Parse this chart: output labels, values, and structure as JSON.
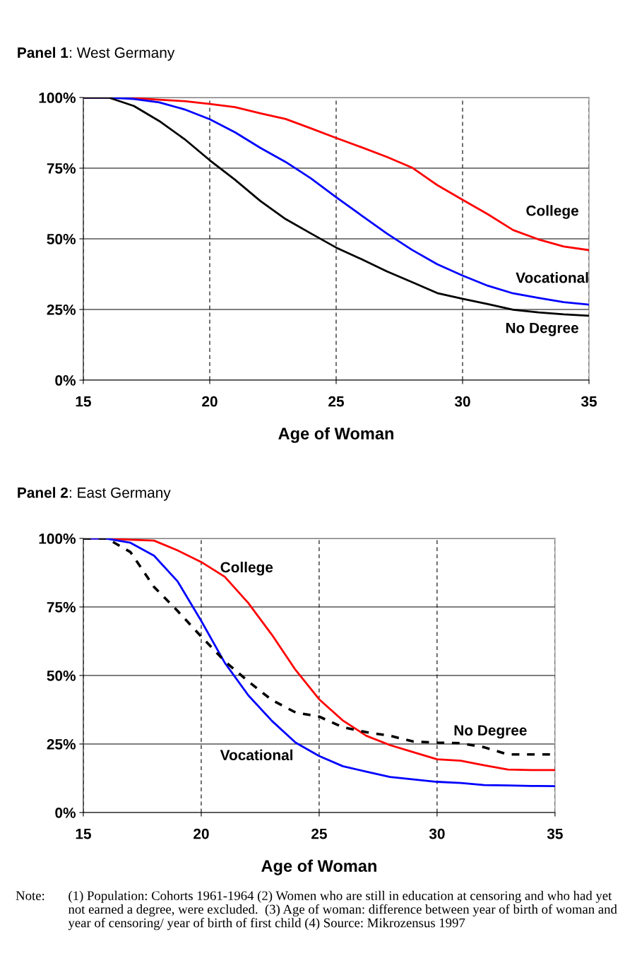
{
  "chart_data": [
    {
      "type": "line",
      "title": "Panel 1: West Germany",
      "xlabel": "Age of Woman",
      "x": [
        15,
        16,
        17,
        18,
        19,
        20,
        21,
        22,
        23,
        24,
        25,
        26,
        27,
        28,
        29,
        30,
        31,
        32,
        33,
        34,
        35
      ],
      "xlim": [
        15,
        35
      ],
      "xticks": [
        15,
        20,
        25,
        30,
        35
      ],
      "ylim": [
        0,
        100
      ],
      "yticks": [
        {
          "value": 0,
          "label": "0%"
        },
        {
          "value": 25,
          "label": "25%"
        },
        {
          "value": 50,
          "label": "50%"
        },
        {
          "value": 75,
          "label": "75%"
        },
        {
          "value": 100,
          "label": "100%"
        }
      ],
      "grid": true,
      "legend": false,
      "series": [
        {
          "name": "College",
          "color": "#ff0000",
          "line_style": "solid",
          "values": [
            100,
            100,
            99.8,
            99.2,
            98.7,
            97.7,
            96.6,
            94.4,
            92.4,
            89.1,
            85.7,
            82.4,
            79.0,
            75.2,
            69.0,
            63.8,
            58.7,
            53.1,
            49.8,
            47.3,
            46.0
          ]
        },
        {
          "name": "Vocational",
          "color": "#0000ff",
          "line_style": "solid",
          "values": [
            100,
            100,
            99.5,
            98.3,
            95.8,
            92.3,
            87.7,
            82.2,
            77.2,
            71.4,
            64.7,
            58.3,
            51.9,
            46.1,
            41.0,
            37.0,
            33.4,
            30.7,
            29.1,
            27.6,
            26.7
          ]
        },
        {
          "name": "No Degree",
          "color": "#000000",
          "line_style": "solid",
          "values": [
            100,
            100,
            97.0,
            91.7,
            85.3,
            77.8,
            70.9,
            63.4,
            57.0,
            51.9,
            46.9,
            42.8,
            38.5,
            34.7,
            30.8,
            28.8,
            26.9,
            24.9,
            24.0,
            23.3,
            22.8
          ]
        }
      ]
    },
    {
      "type": "line",
      "title": "Panel 2: East Germany",
      "xlabel": "Age of Woman",
      "x": [
        15,
        16,
        17,
        18,
        19,
        20,
        21,
        22,
        23,
        24,
        25,
        26,
        27,
        28,
        29,
        30,
        31,
        32,
        33,
        34,
        35
      ],
      "xlim": [
        15,
        35
      ],
      "xticks": [
        15,
        20,
        25,
        30,
        35
      ],
      "ylim": [
        0,
        100
      ],
      "yticks": [
        {
          "value": 0,
          "label": "0%"
        },
        {
          "value": 25,
          "label": "25%"
        },
        {
          "value": 50,
          "label": "50%"
        },
        {
          "value": 75,
          "label": "75%"
        },
        {
          "value": 100,
          "label": "100%"
        }
      ],
      "grid": true,
      "legend": false,
      "annotations": [
        "Note:",
        "(1) Population: Cohorts 1961-1964 (2) Women who are still in education at censoring and who had yet not earned a degree, were excluded.  (3) Age of woman: difference between year of birth of woman and year of censoring/ year of birth of first child (4) Source: Mikrozensus 1997"
      ],
      "series": [
        {
          "name": "College",
          "color": "#ff0000",
          "line_style": "solid",
          "values": [
            100,
            100,
            99.5,
            99.2,
            95.6,
            91.4,
            86.0,
            76.4,
            64.8,
            52.0,
            41.3,
            33.6,
            28.0,
            24.6,
            22.0,
            19.4,
            18.9,
            17.2,
            15.7,
            15.5,
            15.5
          ]
        },
        {
          "name": "Vocational",
          "color": "#0000ff",
          "line_style": "solid",
          "values": [
            100,
            99.9,
            98.4,
            93.7,
            84.3,
            69.9,
            54.6,
            42.7,
            33.4,
            25.5,
            20.6,
            16.9,
            14.9,
            13.0,
            12.1,
            11.2,
            10.8,
            10.0,
            9.9,
            9.7,
            9.6
          ]
        },
        {
          "name": "No Degree",
          "color": "#000000",
          "line_style": "dashed",
          "values": [
            100,
            100,
            95.0,
            82.3,
            73.5,
            64.2,
            55.2,
            47.8,
            41.0,
            36.5,
            35.0,
            31.1,
            29.3,
            28.0,
            25.9,
            25.5,
            25.3,
            23.8,
            21.2,
            21.2,
            21.2
          ]
        }
      ]
    }
  ]
}
